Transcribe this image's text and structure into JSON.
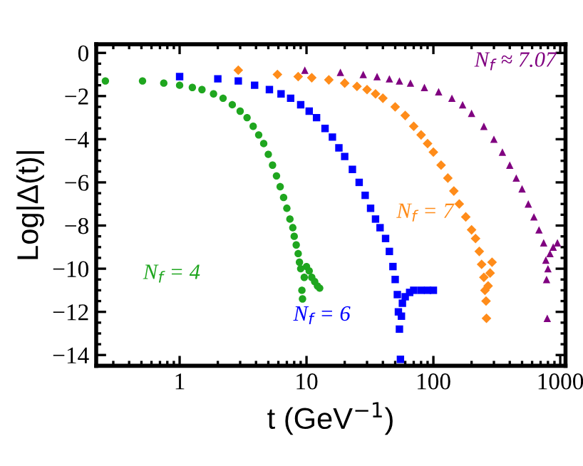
{
  "chart_data": {
    "type": "scatter",
    "xlabel": "t (GeV$^{−1}$)",
    "ylabel": "Log|Δ(t)|",
    "log": "x",
    "xlim": [
      0.22,
      1100
    ],
    "ylim": [
      -14.5,
      0.4
    ],
    "xticks": [
      1,
      10,
      100,
      1000
    ],
    "yticks": [
      {
        "value": 0,
        "label": "0"
      },
      {
        "value": -2,
        "label": "−2"
      },
      {
        "value": -4,
        "label": "−4"
      },
      {
        "value": -6,
        "label": "−6"
      },
      {
        "value": -8,
        "label": "−8"
      },
      {
        "value": -10,
        "label": "−10"
      },
      {
        "value": -12,
        "label": "−12"
      },
      {
        "value": -14,
        "label": "−14"
      }
    ],
    "grid": false,
    "legend": false,
    "series": [
      {
        "name": "N$_{f}$ = 4",
        "color": "#1fa61f",
        "marker": "circle",
        "x": [
          0.26,
          0.51,
          0.75,
          1.0,
          1.26,
          1.5,
          1.85,
          2.2,
          2.6,
          3.0,
          3.4,
          3.8,
          4.2,
          4.6,
          5.0,
          5.4,
          5.8,
          6.2,
          6.6,
          7.0,
          7.4,
          7.8,
          8.0,
          8.3,
          8.6,
          8.8,
          9.0,
          9.2,
          9.3,
          9.6,
          10.0,
          10.5,
          11.0,
          11.6,
          12.2,
          12.7
        ],
        "values": [
          -1.3,
          -1.3,
          -1.4,
          -1.5,
          -1.6,
          -1.7,
          -1.9,
          -2.1,
          -2.4,
          -2.7,
          -3.0,
          -3.4,
          -3.8,
          -4.2,
          -4.7,
          -5.2,
          -5.7,
          -6.2,
          -6.7,
          -7.2,
          -7.7,
          -8.1,
          -8.5,
          -8.9,
          -9.3,
          -9.7,
          -10.0,
          -11.0,
          -11.4,
          -10.4,
          -9.9,
          -10.1,
          -10.4,
          -10.6,
          -10.8,
          -10.9
        ]
      },
      {
        "name": "N$_{f}$ = 6",
        "color": "#0000ff",
        "marker": "square",
        "x": [
          1.0,
          2.0,
          2.9,
          3.9,
          5.1,
          6.3,
          7.5,
          9,
          10.5,
          12,
          14,
          16,
          18,
          20,
          23,
          26,
          29,
          32,
          35,
          38,
          42,
          45,
          48,
          50,
          52,
          53,
          54,
          55,
          56,
          57,
          60,
          65,
          70,
          80,
          90,
          100
        ],
        "values": [
          -1.1,
          -1.2,
          -1.3,
          -1.5,
          -1.7,
          -1.9,
          -2.1,
          -2.4,
          -2.7,
          -3.0,
          -3.5,
          -3.9,
          -4.4,
          -4.8,
          -5.4,
          -6.0,
          -6.6,
          -7.2,
          -7.7,
          -8.1,
          -8.6,
          -9.2,
          -9.9,
          -10.5,
          -11.2,
          -12.0,
          -12.8,
          -14.2,
          -12.2,
          -11.6,
          -11.3,
          -11.1,
          -11.0,
          -11.0,
          -11.0,
          -11.0
        ]
      },
      {
        "name": "N$_{f}$ = 7",
        "color": "#ff8c1a",
        "marker": "diamond",
        "x": [
          2.9,
          5.9,
          8.6,
          11,
          15,
          20,
          25,
          30,
          35,
          40,
          50,
          60,
          70,
          80,
          90,
          100,
          115,
          130,
          145,
          160,
          180,
          200,
          215,
          230,
          240,
          250,
          255,
          260,
          262,
          270,
          280,
          290
        ],
        "values": [
          -0.8,
          -1.0,
          -1.1,
          -1.15,
          -1.25,
          -1.4,
          -1.55,
          -1.7,
          -1.9,
          -2.1,
          -2.5,
          -2.9,
          -3.4,
          -3.8,
          -4.2,
          -4.6,
          -5.2,
          -5.8,
          -6.4,
          -7.0,
          -7.6,
          -8.2,
          -8.6,
          -9.2,
          -9.8,
          -10.4,
          -11.0,
          -11.5,
          -12.3,
          -10.8,
          -10.2,
          -9.7
        ]
      },
      {
        "name": "N$_{f}$ ≈ 7.07",
        "color": "#800080",
        "marker": "triangle",
        "x": [
          9.7,
          18.5,
          28,
          36,
          45,
          54,
          66,
          85,
          110,
          140,
          170,
          200,
          250,
          300,
          350,
          400,
          450,
          500,
          560,
          620,
          680,
          740,
          770,
          780,
          790,
          800,
          830,
          880,
          950
        ],
        "values": [
          -0.8,
          -0.9,
          -1.0,
          -1.1,
          -1.2,
          -1.3,
          -1.4,
          -1.6,
          -1.8,
          -2.1,
          -2.4,
          -2.8,
          -3.4,
          -4.0,
          -4.6,
          -5.2,
          -5.8,
          -6.3,
          -7.0,
          -7.6,
          -8.2,
          -8.8,
          -9.6,
          -10.5,
          -12.3,
          -10.0,
          -9.3,
          -9.0,
          -8.8
        ]
      }
    ]
  }
}
